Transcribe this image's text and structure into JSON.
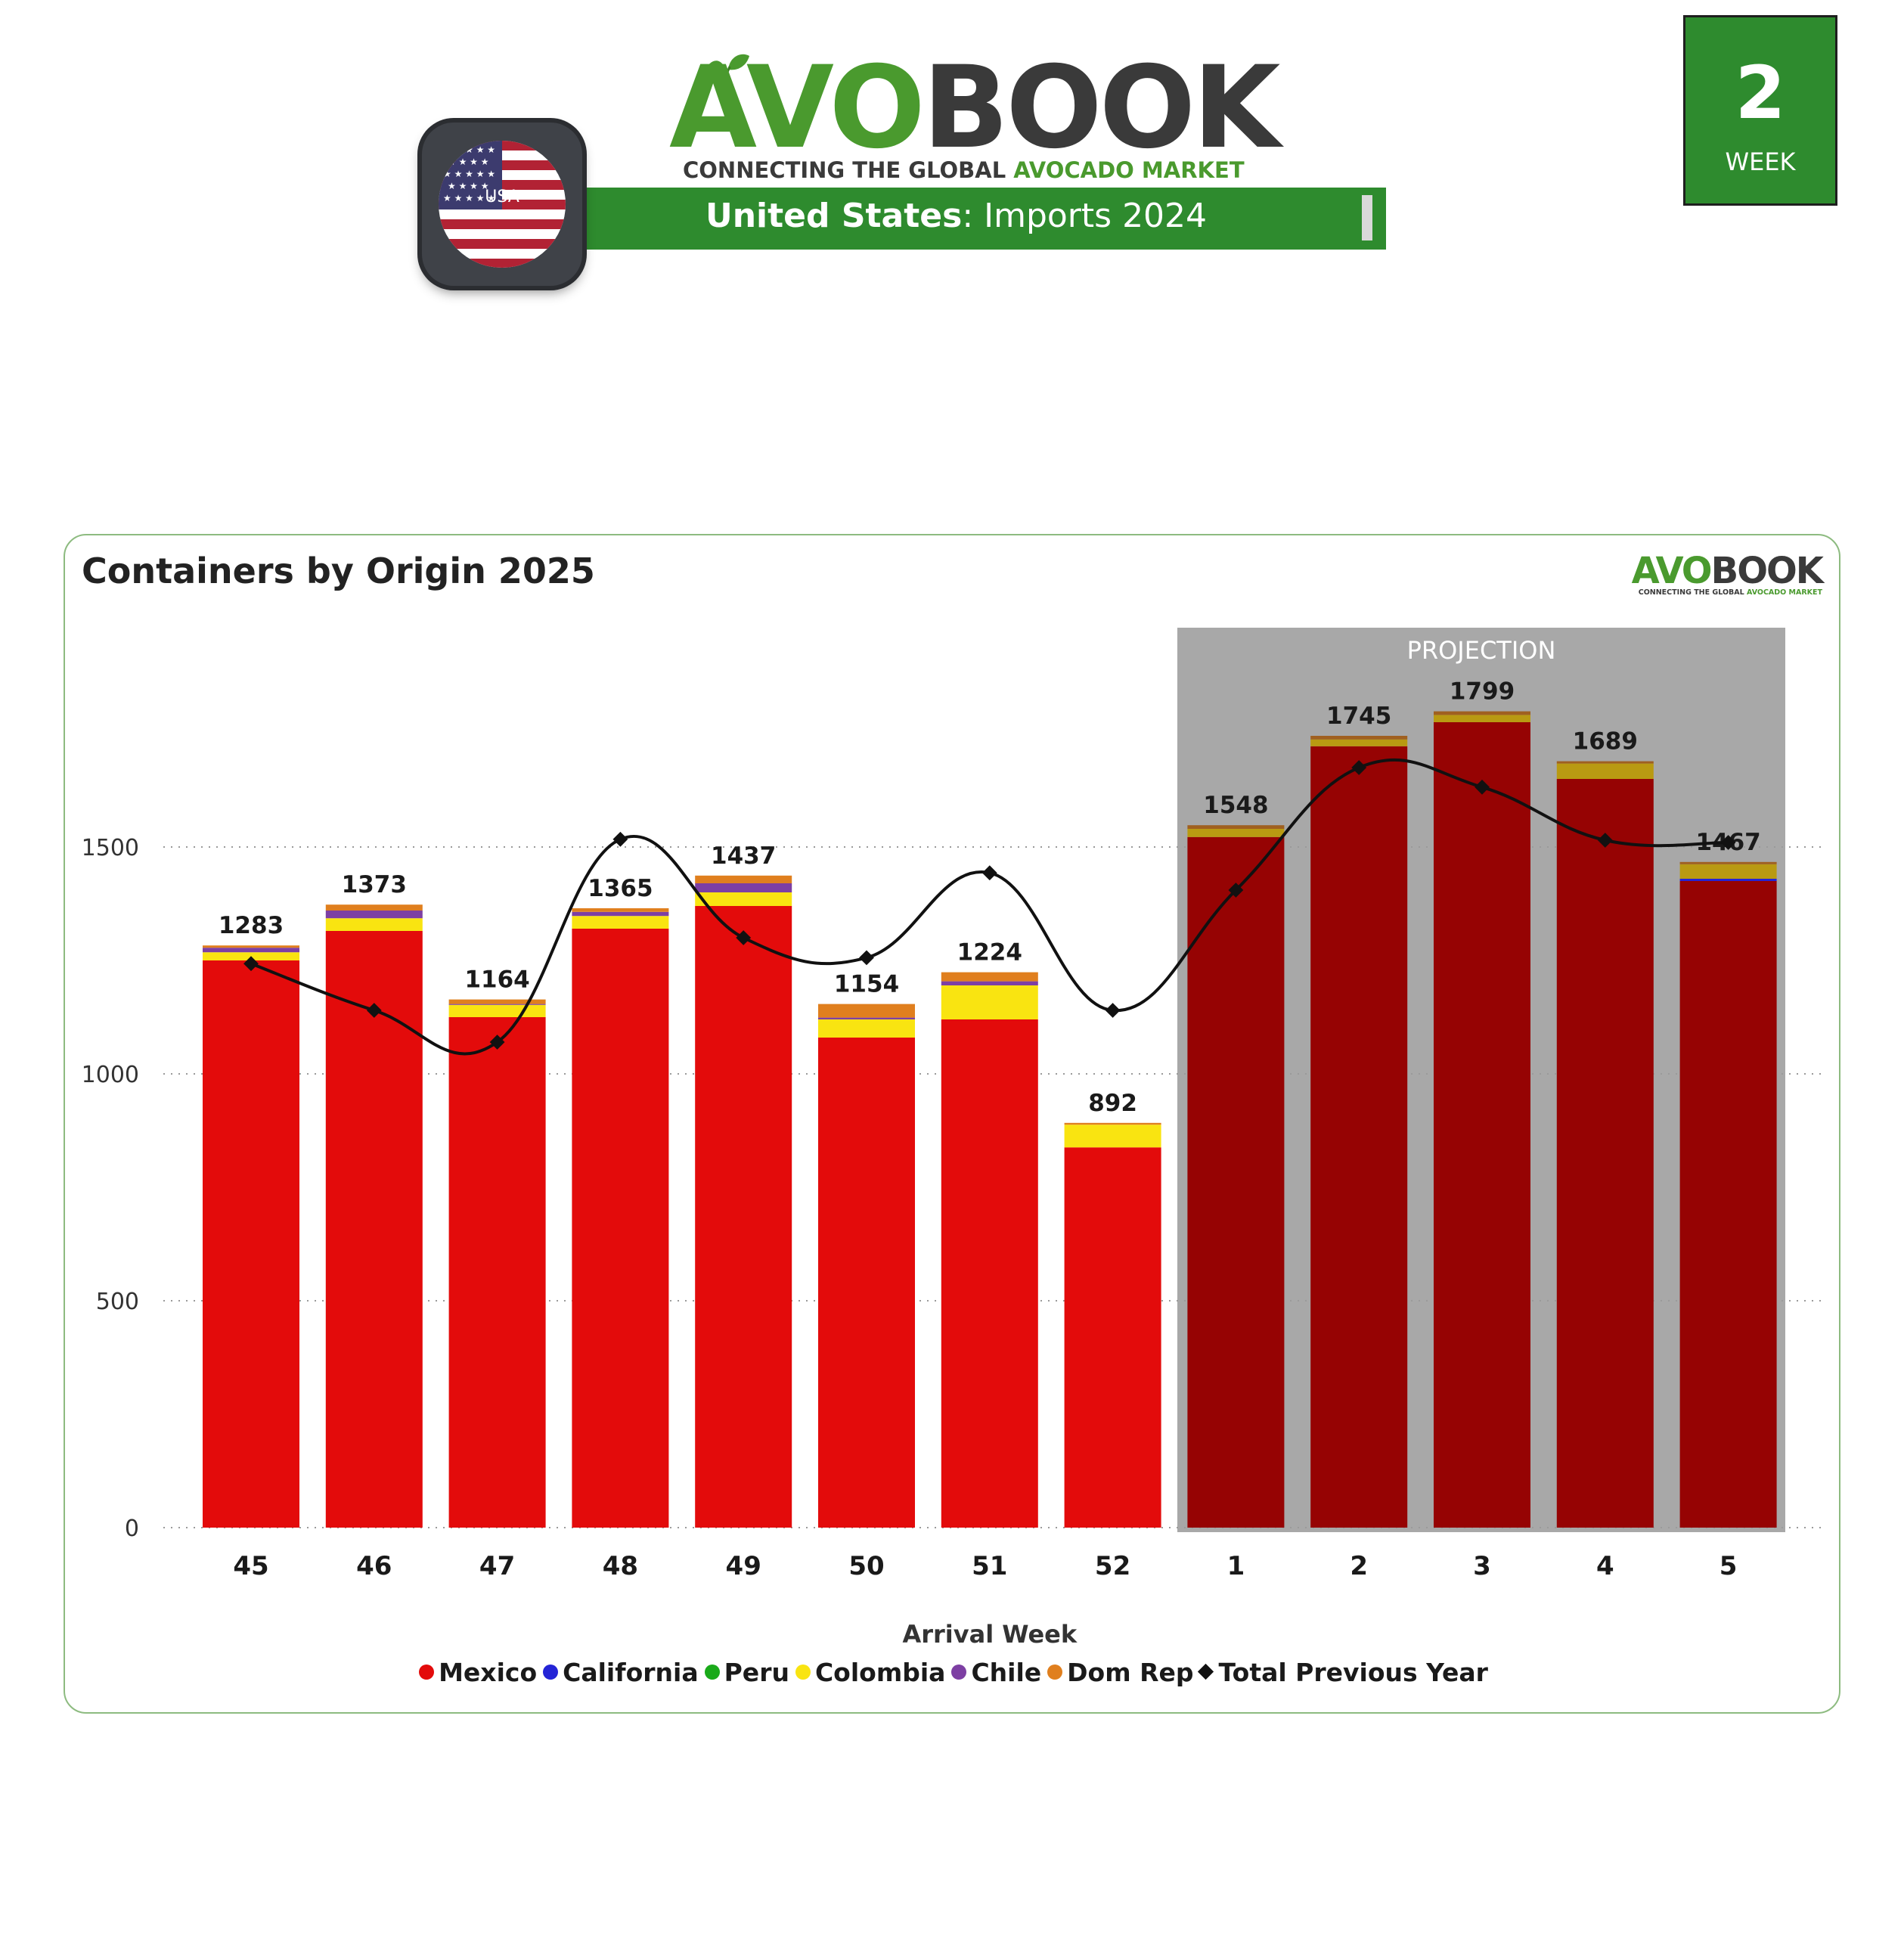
{
  "header": {
    "logo_avo": "AVO",
    "logo_book": "BOOK",
    "tagline_part1": "CONNECTING THE GLOBAL ",
    "tagline_part2": "AVOCADO MARKET",
    "banner_country": "United States",
    "banner_rest": ": Imports 2024",
    "flag_label": "USA",
    "week_number": "2",
    "week_label": "WEEK"
  },
  "colors": {
    "brand_green": "#2e8b2e",
    "mexico": "#e30b0b",
    "mexico_projection": "#960303",
    "california": "#2424d6",
    "peru": "#1aaa1a",
    "colombia": "#f9e411",
    "colombia_projection": "#b99a12",
    "chile": "#7d3fa3",
    "dom_rep": "#e07f1e",
    "dom_rep_projection": "#a06020",
    "previous_year_line": "#111111",
    "projection_bg": "#a8a8a8"
  },
  "chart_data": {
    "type": "bar",
    "stacked": true,
    "title": "Containers by Origin 2025",
    "xlabel": "Arrival Week",
    "ylabel": "",
    "ylim": [
      0,
      1950
    ],
    "yticks": [
      0,
      500,
      1000,
      1500
    ],
    "grid": "horizontal dotted",
    "legend_position": "bottom",
    "projection_label": "PROJECTION",
    "projection_categories": [
      "1",
      "2",
      "3",
      "4",
      "5"
    ],
    "categories": [
      "45",
      "46",
      "47",
      "48",
      "49",
      "50",
      "51",
      "52",
      "1",
      "2",
      "3",
      "4",
      "5"
    ],
    "totals": [
      1283,
      1373,
      1164,
      1365,
      1437,
      1154,
      1224,
      892,
      1548,
      1745,
      1799,
      1689,
      1467
    ],
    "series": [
      {
        "name": "Mexico",
        "values": [
          1250,
          1315,
          1125,
          1320,
          1370,
          1080,
          1120,
          838,
          1522,
          1722,
          1775,
          1650,
          1425
        ]
      },
      {
        "name": "California",
        "values": [
          0,
          0,
          0,
          0,
          0,
          0,
          0,
          0,
          0,
          0,
          0,
          0,
          5
        ]
      },
      {
        "name": "Peru",
        "values": [
          0,
          0,
          0,
          0,
          0,
          0,
          0,
          0,
          0,
          0,
          0,
          0,
          0
        ]
      },
      {
        "name": "Colombia",
        "values": [
          18,
          28,
          27,
          28,
          30,
          40,
          75,
          50,
          18,
          15,
          16,
          34,
          32
        ]
      },
      {
        "name": "Chile",
        "values": [
          10,
          17,
          2,
          9,
          20,
          4,
          9,
          0,
          0,
          0,
          0,
          0,
          0
        ]
      },
      {
        "name": "Dom Rep",
        "values": [
          5,
          13,
          10,
          8,
          17,
          30,
          20,
          4,
          8,
          8,
          8,
          5,
          5
        ]
      },
      {
        "name": "Total Previous Year",
        "type": "line",
        "values": [
          1243,
          1140,
          1070,
          1517,
          1300,
          1256,
          1443,
          1140,
          1405,
          1675,
          1632,
          1515,
          1510
        ]
      }
    ]
  }
}
